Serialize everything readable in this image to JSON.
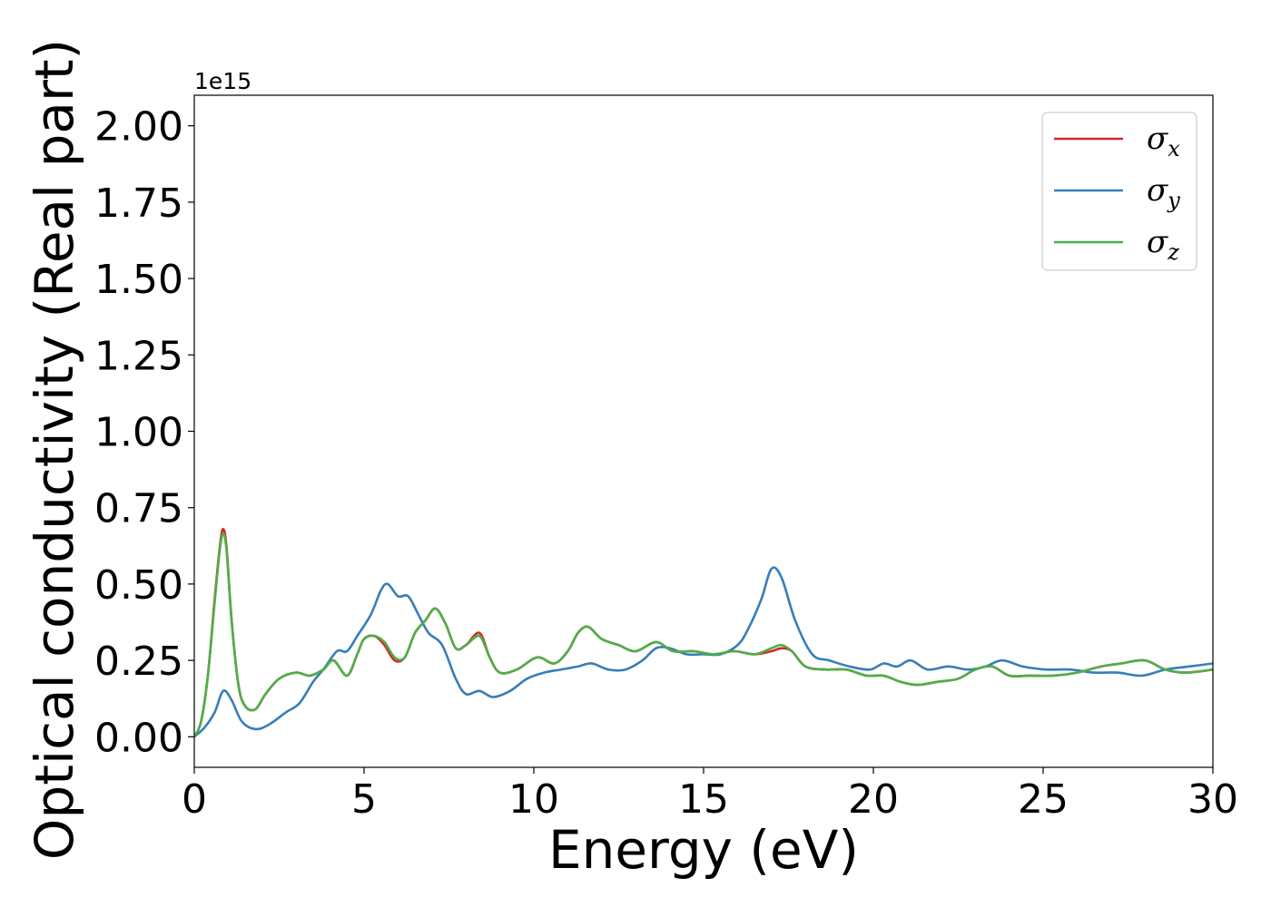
{
  "chart_data": {
    "type": "line",
    "title": "",
    "xlabel": "Energy (eV)",
    "ylabel": "Optical conductivity (Real part)",
    "y_offset_text": "1e15",
    "xlim": [
      0,
      30
    ],
    "ylim": [
      -0.1,
      2.1
    ],
    "xticks": [
      0,
      5,
      10,
      15,
      20,
      25,
      30
    ],
    "xtick_labels": [
      "0",
      "5",
      "10",
      "15",
      "20",
      "25",
      "30"
    ],
    "yticks": [
      0.0,
      0.25,
      0.5,
      0.75,
      1.0,
      1.25,
      1.5,
      1.75,
      2.0
    ],
    "ytick_labels": [
      "0.00",
      "0.25",
      "0.50",
      "0.75",
      "1.00",
      "1.25",
      "1.50",
      "1.75",
      "2.00"
    ],
    "grid": false,
    "legend_position": "top-right",
    "series": [
      {
        "name": "σx",
        "symbol": "σ",
        "subscript": "x",
        "color": "#d62728",
        "x": [
          0,
          0.2,
          0.4,
          0.6,
          0.75,
          0.85,
          0.95,
          1.1,
          1.3,
          1.5,
          1.8,
          2.1,
          2.5,
          3.0,
          3.4,
          3.8,
          4.1,
          4.5,
          4.8,
          5.0,
          5.3,
          5.6,
          5.9,
          6.2,
          6.5,
          6.8,
          7.1,
          7.4,
          7.7,
          8.0,
          8.4,
          8.7,
          9.0,
          9.5,
          10.1,
          10.6,
          11.0,
          11.3,
          11.6,
          12.0,
          12.5,
          13.0,
          13.6,
          14.1,
          14.7,
          15.3,
          15.9,
          16.5,
          17.0,
          17.3,
          17.6,
          18.0,
          18.6,
          19.2,
          19.8,
          20.3,
          20.8,
          21.3,
          21.9,
          22.5,
          23.0,
          23.5,
          24.0,
          24.6,
          25.3,
          26.0,
          26.7,
          27.3,
          28.0,
          28.6,
          29.2,
          30.0
        ],
        "y": [
          0.0,
          0.05,
          0.2,
          0.45,
          0.62,
          0.68,
          0.62,
          0.38,
          0.17,
          0.1,
          0.09,
          0.14,
          0.19,
          0.21,
          0.2,
          0.22,
          0.25,
          0.2,
          0.27,
          0.32,
          0.33,
          0.3,
          0.25,
          0.26,
          0.34,
          0.38,
          0.42,
          0.37,
          0.29,
          0.3,
          0.34,
          0.26,
          0.21,
          0.22,
          0.26,
          0.24,
          0.28,
          0.34,
          0.36,
          0.32,
          0.3,
          0.28,
          0.31,
          0.28,
          0.28,
          0.27,
          0.28,
          0.27,
          0.28,
          0.29,
          0.28,
          0.23,
          0.22,
          0.22,
          0.2,
          0.2,
          0.18,
          0.17,
          0.18,
          0.19,
          0.22,
          0.23,
          0.2,
          0.2,
          0.2,
          0.21,
          0.23,
          0.24,
          0.25,
          0.22,
          0.21,
          0.22
        ]
      },
      {
        "name": "σy",
        "symbol": "σ",
        "subscript": "y",
        "color": "#377eb8",
        "x": [
          0,
          0.3,
          0.6,
          0.85,
          1.1,
          1.4,
          1.8,
          2.2,
          2.7,
          3.1,
          3.5,
          3.8,
          4.2,
          4.5,
          4.8,
          5.2,
          5.5,
          5.7,
          6.0,
          6.3,
          6.6,
          6.9,
          7.3,
          7.7,
          8.0,
          8.4,
          8.8,
          9.3,
          9.8,
          10.3,
          10.8,
          11.3,
          11.7,
          12.2,
          12.7,
          13.2,
          13.6,
          14.0,
          14.5,
          15.0,
          15.5,
          16.0,
          16.3,
          16.7,
          17.0,
          17.3,
          17.7,
          18.2,
          18.7,
          19.3,
          19.9,
          20.3,
          20.7,
          21.1,
          21.6,
          22.2,
          22.8,
          23.3,
          23.8,
          24.4,
          25.1,
          25.8,
          26.5,
          27.2,
          27.9,
          28.6,
          29.3,
          30.0
        ],
        "y": [
          0.0,
          0.03,
          0.08,
          0.15,
          0.12,
          0.05,
          0.025,
          0.04,
          0.08,
          0.11,
          0.18,
          0.22,
          0.28,
          0.28,
          0.33,
          0.4,
          0.48,
          0.5,
          0.46,
          0.46,
          0.4,
          0.34,
          0.3,
          0.19,
          0.14,
          0.15,
          0.13,
          0.15,
          0.19,
          0.21,
          0.22,
          0.23,
          0.24,
          0.22,
          0.22,
          0.25,
          0.29,
          0.29,
          0.27,
          0.27,
          0.27,
          0.3,
          0.35,
          0.45,
          0.55,
          0.52,
          0.38,
          0.27,
          0.25,
          0.23,
          0.22,
          0.24,
          0.23,
          0.25,
          0.22,
          0.23,
          0.22,
          0.23,
          0.25,
          0.23,
          0.22,
          0.22,
          0.21,
          0.21,
          0.2,
          0.22,
          0.23,
          0.24
        ]
      },
      {
        "name": "σz",
        "symbol": "σ",
        "subscript": "z",
        "color": "#4daf4a",
        "x": [
          0,
          0.2,
          0.4,
          0.6,
          0.75,
          0.85,
          0.95,
          1.1,
          1.3,
          1.5,
          1.8,
          2.1,
          2.5,
          3.0,
          3.4,
          3.8,
          4.1,
          4.5,
          4.8,
          5.0,
          5.3,
          5.6,
          5.9,
          6.2,
          6.5,
          6.8,
          7.1,
          7.4,
          7.7,
          8.0,
          8.4,
          8.7,
          9.0,
          9.5,
          10.1,
          10.6,
          11.0,
          11.3,
          11.6,
          12.0,
          12.5,
          13.0,
          13.6,
          14.1,
          14.7,
          15.3,
          15.9,
          16.5,
          17.0,
          17.3,
          17.6,
          18.0,
          18.6,
          19.2,
          19.8,
          20.3,
          20.8,
          21.3,
          21.9,
          22.5,
          23.0,
          23.5,
          24.0,
          24.6,
          25.3,
          26.0,
          26.7,
          27.3,
          28.0,
          28.6,
          29.2,
          30.0
        ],
        "y": [
          0.0,
          0.05,
          0.2,
          0.44,
          0.61,
          0.665,
          0.61,
          0.38,
          0.17,
          0.1,
          0.09,
          0.14,
          0.19,
          0.21,
          0.2,
          0.22,
          0.25,
          0.2,
          0.27,
          0.32,
          0.33,
          0.31,
          0.26,
          0.26,
          0.34,
          0.38,
          0.42,
          0.37,
          0.29,
          0.3,
          0.33,
          0.26,
          0.21,
          0.22,
          0.26,
          0.24,
          0.28,
          0.34,
          0.36,
          0.32,
          0.3,
          0.28,
          0.31,
          0.28,
          0.28,
          0.27,
          0.28,
          0.27,
          0.29,
          0.3,
          0.28,
          0.23,
          0.22,
          0.22,
          0.2,
          0.2,
          0.18,
          0.17,
          0.18,
          0.19,
          0.22,
          0.23,
          0.2,
          0.2,
          0.2,
          0.21,
          0.23,
          0.24,
          0.25,
          0.22,
          0.21,
          0.22
        ]
      }
    ]
  }
}
